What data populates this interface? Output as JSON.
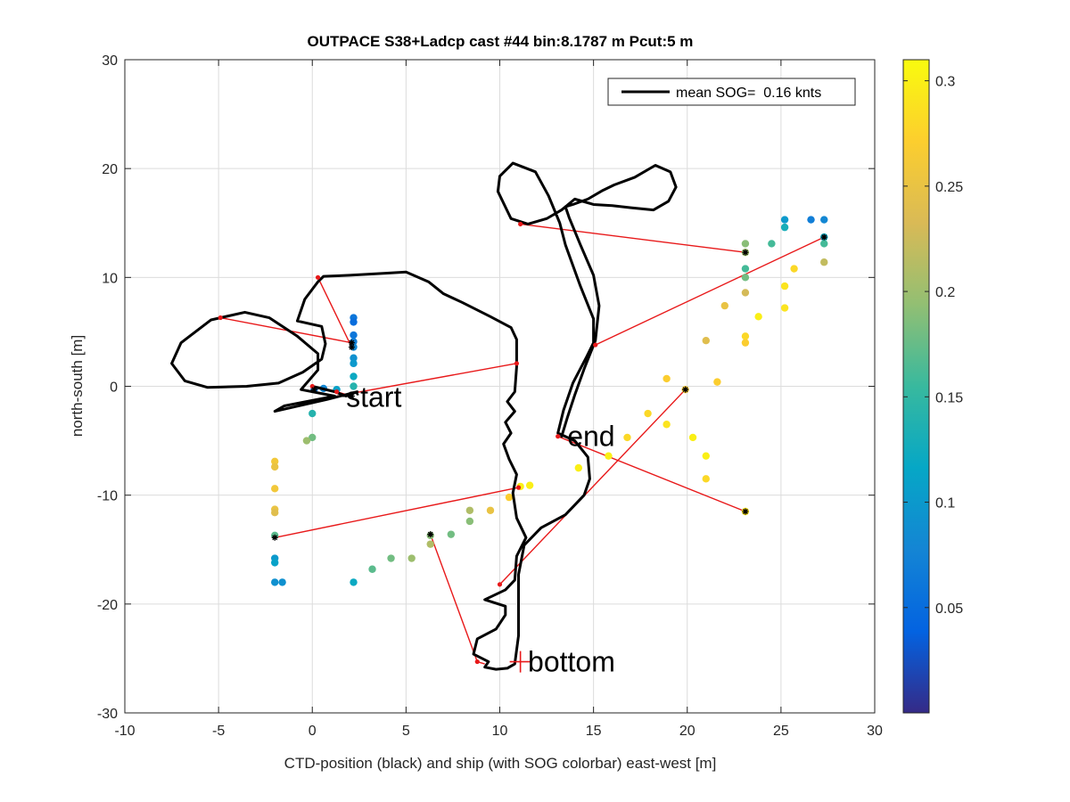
{
  "chart_data": {
    "type": "scatter",
    "title": "OUTPACE S38+Ladcp cast #44 bin:8.1787 m  Pcut:5 m",
    "xlabel": "CTD-position (black) and ship (with SOG colorbar) east-west [m]",
    "ylabel": "north-south [m]",
    "xlim": [
      -10,
      30
    ],
    "ylim": [
      -30,
      30
    ],
    "xticks": [
      -10,
      -5,
      0,
      5,
      10,
      15,
      20,
      25,
      30
    ],
    "yticks": [
      -30,
      -20,
      -10,
      0,
      10,
      20,
      30
    ],
    "grid": true,
    "legend": {
      "placement": "top-right",
      "entries": [
        "mean SOG=  0.16 knts"
      ]
    },
    "colorbar": {
      "range": [
        0,
        0.31
      ],
      "ticks": [
        0.05,
        0.1,
        0.15,
        0.2,
        0.25,
        0.3
      ],
      "tick_labels": [
        "0.05",
        "0.1",
        "0.15",
        "0.2",
        "0.25",
        "0.3"
      ],
      "colormap": [
        "#352a87",
        "#0363e1",
        "#1485d4",
        "#06a7c6",
        "#38b99e",
        "#92bf73",
        "#d9ba56",
        "#fcce2e",
        "#f9fb0e"
      ]
    },
    "annotations": [
      {
        "text": "start",
        "x": 1.8,
        "y": -1.0
      },
      {
        "text": "end",
        "x": 13.6,
        "y": -4.6
      },
      {
        "text": "bottom",
        "x": 11.5,
        "y": -25.3
      }
    ],
    "bottom_marker": {
      "x": 11.1,
      "y": -25.3
    },
    "ctd_track": [
      [
        0,
        0
      ],
      [
        1.2,
        -0.5
      ],
      [
        1.8,
        -0.9
      ],
      [
        2.4,
        -0.5
      ],
      [
        0.8,
        -1.2
      ],
      [
        -2.0,
        -2.3
      ],
      [
        -1.5,
        -1.8
      ],
      [
        1.2,
        -0.9
      ],
      [
        -0.6,
        -0.3
      ],
      [
        0.3,
        1.5
      ],
      [
        0.3,
        3.0
      ],
      [
        -0.8,
        4.6
      ],
      [
        -2.3,
        6.3
      ],
      [
        -3.6,
        6.8
      ],
      [
        -5.4,
        6.1
      ],
      [
        -7.0,
        4.0
      ],
      [
        -7.5,
        2.1
      ],
      [
        -6.8,
        0.5
      ],
      [
        -5.6,
        -0.1
      ],
      [
        -3.5,
        0
      ],
      [
        -1.8,
        0.3
      ],
      [
        -0.5,
        1.3
      ],
      [
        0.5,
        2.5
      ],
      [
        0.7,
        3.9
      ],
      [
        0.5,
        5.5
      ],
      [
        -0.8,
        6.0
      ],
      [
        -0.4,
        8.0
      ],
      [
        0.3,
        9.6
      ],
      [
        0.6,
        10.1
      ],
      [
        2.0,
        10.2
      ],
      [
        4.0,
        10.4
      ],
      [
        5.0,
        10.5
      ],
      [
        6.2,
        9.6
      ],
      [
        7.0,
        8.5
      ],
      [
        8.0,
        7.7
      ],
      [
        9.5,
        6.4
      ],
      [
        10.6,
        5.4
      ],
      [
        10.9,
        4.3
      ],
      [
        10.9,
        1.8
      ],
      [
        10.8,
        -0.5
      ],
      [
        10.4,
        -1.4
      ],
      [
        10.8,
        -2.3
      ],
      [
        10.3,
        -3.3
      ],
      [
        10.6,
        -4.3
      ],
      [
        10.2,
        -5.3
      ],
      [
        10.5,
        -6.7
      ],
      [
        10.9,
        -8.1
      ],
      [
        10.7,
        -9.8
      ],
      [
        10.9,
        -12.1
      ],
      [
        11.4,
        -13.9
      ],
      [
        10.9,
        -15.6
      ],
      [
        10.8,
        -17.8
      ],
      [
        10.3,
        -18.7
      ],
      [
        9.2,
        -19.6
      ],
      [
        10.3,
        -20.2
      ],
      [
        10.3,
        -21.0
      ],
      [
        9.8,
        -22.3
      ],
      [
        8.8,
        -23.2
      ],
      [
        8.6,
        -24.6
      ],
      [
        9.4,
        -25.3
      ],
      [
        9.2,
        -25.8
      ],
      [
        9.8,
        -26.0
      ],
      [
        10.4,
        -25.9
      ],
      [
        10.8,
        -25.5
      ],
      [
        11.0,
        -22.9
      ],
      [
        11.0,
        -17.3
      ],
      [
        11.3,
        -14.6
      ],
      [
        12.2,
        -13.0
      ],
      [
        13.5,
        -11.8
      ],
      [
        14.5,
        -10.0
      ],
      [
        14.8,
        -8.5
      ],
      [
        14.7,
        -6.5
      ],
      [
        14.0,
        -5.0
      ],
      [
        13.1,
        -4.3
      ],
      [
        13.4,
        -2.2
      ],
      [
        13.9,
        0.3
      ],
      [
        14.6,
        2.6
      ],
      [
        15.0,
        4.0
      ],
      [
        15.0,
        6.2
      ],
      [
        14.3,
        9.2
      ],
      [
        13.5,
        13.0
      ],
      [
        13.2,
        15.0
      ],
      [
        12.6,
        17.5
      ],
      [
        11.9,
        19.7
      ],
      [
        10.7,
        20.5
      ],
      [
        10.0,
        19.3
      ],
      [
        9.9,
        17.9
      ],
      [
        10.6,
        15.4
      ],
      [
        11.5,
        14.9
      ],
      [
        12.5,
        15.4
      ],
      [
        13.3,
        16.2
      ],
      [
        14.0,
        17.2
      ],
      [
        15.0,
        16.7
      ],
      [
        16.0,
        16.6
      ],
      [
        17.0,
        16.4
      ],
      [
        18.2,
        16.2
      ],
      [
        19.0,
        17.0
      ],
      [
        19.4,
        18.3
      ],
      [
        19.1,
        19.7
      ],
      [
        18.3,
        20.3
      ],
      [
        17.2,
        19.2
      ],
      [
        16.1,
        18.5
      ],
      [
        15.5,
        18.0
      ],
      [
        14.7,
        17.2
      ],
      [
        13.9,
        16.7
      ],
      [
        13.5,
        16.5
      ],
      [
        13.7,
        15.5
      ],
      [
        14.3,
        13.0
      ],
      [
        15.0,
        10.2
      ],
      [
        15.3,
        7.4
      ],
      [
        15.1,
        4.2
      ],
      [
        14.5,
        1.6
      ],
      [
        14.0,
        -0.8
      ],
      [
        13.6,
        -2.9
      ],
      [
        13.3,
        -4.6
      ]
    ],
    "ship_track": [
      {
        "x": 2.2,
        "y": 6.3,
        "sog": 0.06
      },
      {
        "x": 2.2,
        "y": 5.9,
        "sog": 0.05
      },
      {
        "x": 2.2,
        "y": 4.7,
        "sog": 0.06
      },
      {
        "x": 2.2,
        "y": 4.1,
        "sog": 0.07
      },
      {
        "x": 2.2,
        "y": 3.6,
        "sog": 0.08
      },
      {
        "x": 2.2,
        "y": 2.6,
        "sog": 0.09
      },
      {
        "x": 2.2,
        "y": 2.1,
        "sog": 0.1
      },
      {
        "x": 2.2,
        "y": 0.9,
        "sog": 0.12
      },
      {
        "x": 2.2,
        "y": 0.0,
        "sog": 0.14
      },
      {
        "x": 1.3,
        "y": -0.3,
        "sog": 0.11
      },
      {
        "x": 0.6,
        "y": -0.2,
        "sog": 0.08
      },
      {
        "x": 0.1,
        "y": -0.3,
        "sog": 0.06
      },
      {
        "x": 0.0,
        "y": -2.5,
        "sog": 0.14
      },
      {
        "x": 0.0,
        "y": -4.7,
        "sog": 0.18
      },
      {
        "x": -0.3,
        "y": -5.0,
        "sog": 0.2
      },
      {
        "x": -2.0,
        "y": -6.9,
        "sog": 0.26
      },
      {
        "x": -2.0,
        "y": -7.4,
        "sog": 0.25
      },
      {
        "x": -2.0,
        "y": -9.4,
        "sog": 0.26
      },
      {
        "x": -2.0,
        "y": -11.3,
        "sog": 0.25
      },
      {
        "x": -2.0,
        "y": -11.6,
        "sog": 0.24
      },
      {
        "x": -2.0,
        "y": -13.7,
        "sog": 0.17
      },
      {
        "x": -2.0,
        "y": -15.8,
        "sog": 0.1
      },
      {
        "x": -2.0,
        "y": -16.2,
        "sog": 0.11
      },
      {
        "x": -2.0,
        "y": -18.0,
        "sog": 0.09
      },
      {
        "x": -1.6,
        "y": -18.0,
        "sog": 0.09
      },
      {
        "x": 2.2,
        "y": -18.0,
        "sog": 0.12
      },
      {
        "x": 3.2,
        "y": -16.8,
        "sog": 0.17
      },
      {
        "x": 4.2,
        "y": -15.8,
        "sog": 0.18
      },
      {
        "x": 5.3,
        "y": -15.8,
        "sog": 0.2
      },
      {
        "x": 6.3,
        "y": -14.5,
        "sog": 0.21
      },
      {
        "x": 6.3,
        "y": -13.7,
        "sog": 0.19
      },
      {
        "x": 7.4,
        "y": -13.6,
        "sog": 0.18
      },
      {
        "x": 8.4,
        "y": -12.4,
        "sog": 0.19
      },
      {
        "x": 8.4,
        "y": -11.4,
        "sog": 0.21
      },
      {
        "x": 9.5,
        "y": -11.4,
        "sog": 0.25
      },
      {
        "x": 10.5,
        "y": -10.2,
        "sog": 0.27
      },
      {
        "x": 11.1,
        "y": -9.2,
        "sog": 0.3
      },
      {
        "x": 11.6,
        "y": -9.1,
        "sog": 0.3
      },
      {
        "x": 14.2,
        "y": -7.5,
        "sog": 0.3
      },
      {
        "x": 15.8,
        "y": -6.4,
        "sog": 0.3
      },
      {
        "x": 16.8,
        "y": -4.7,
        "sog": 0.28
      },
      {
        "x": 17.9,
        "y": -2.5,
        "sog": 0.28
      },
      {
        "x": 18.9,
        "y": -3.5,
        "sog": 0.29
      },
      {
        "x": 18.9,
        "y": 0.7,
        "sog": 0.27
      },
      {
        "x": 19.9,
        "y": -0.3,
        "sog": 0.26
      },
      {
        "x": 20.3,
        "y": -4.7,
        "sog": 0.3
      },
      {
        "x": 21.0,
        "y": -6.4,
        "sog": 0.3
      },
      {
        "x": 21.0,
        "y": -8.5,
        "sog": 0.28
      },
      {
        "x": 21.6,
        "y": 0.4,
        "sog": 0.27
      },
      {
        "x": 21.0,
        "y": 4.2,
        "sog": 0.24
      },
      {
        "x": 22.0,
        "y": 7.4,
        "sog": 0.25
      },
      {
        "x": 23.1,
        "y": 4.0,
        "sog": 0.27
      },
      {
        "x": 23.1,
        "y": 4.6,
        "sog": 0.28
      },
      {
        "x": 23.1,
        "y": 8.6,
        "sog": 0.23
      },
      {
        "x": 23.1,
        "y": 10.0,
        "sog": 0.18
      },
      {
        "x": 23.1,
        "y": 10.8,
        "sog": 0.16
      },
      {
        "x": 23.1,
        "y": 12.3,
        "sog": 0.2
      },
      {
        "x": 23.1,
        "y": 13.1,
        "sog": 0.19
      },
      {
        "x": 23.1,
        "y": -11.5,
        "sog": 0.29
      },
      {
        "x": 23.8,
        "y": 6.4,
        "sog": 0.3
      },
      {
        "x": 24.5,
        "y": 13.1,
        "sog": 0.16
      },
      {
        "x": 25.2,
        "y": 15.3,
        "sog": 0.1
      },
      {
        "x": 25.2,
        "y": 14.6,
        "sog": 0.13
      },
      {
        "x": 25.2,
        "y": 9.2,
        "sog": 0.29
      },
      {
        "x": 25.2,
        "y": 7.2,
        "sog": 0.29
      },
      {
        "x": 25.7,
        "y": 10.8,
        "sog": 0.28
      },
      {
        "x": 26.6,
        "y": 15.3,
        "sog": 0.07
      },
      {
        "x": 27.3,
        "y": 15.3,
        "sog": 0.08
      },
      {
        "x": 27.3,
        "y": 13.7,
        "sog": 0.12
      },
      {
        "x": 27.3,
        "y": 13.1,
        "sog": 0.16
      },
      {
        "x": 27.3,
        "y": 11.4,
        "sog": 0.22
      }
    ],
    "connections": [
      [
        [
          0,
          0
        ],
        [
          1.3,
          -0.5
        ],
        [
          2.1,
          -0.9
        ]
      ],
      [
        [
          2.1,
          4.0
        ],
        [
          -4.9,
          6.3
        ]
      ],
      [
        [
          2.1,
          3.6
        ],
        [
          0.3,
          10.0
        ]
      ],
      [
        [
          1.3,
          -0.9
        ],
        [
          10.9,
          2.1
        ]
      ],
      [
        [
          -2.0,
          -13.9
        ],
        [
          11.0,
          -9.3
        ]
      ],
      [
        [
          6.3,
          -13.6
        ],
        [
          8.8,
          -25.3
        ]
      ],
      [
        [
          8.8,
          -25.3
        ],
        [
          9.2,
          -25.5
        ]
      ],
      [
        [
          10.0,
          -18.2
        ],
        [
          19.9,
          -0.3
        ]
      ],
      [
        [
          13.1,
          -4.6
        ],
        [
          23.1,
          -11.5
        ]
      ],
      [
        [
          15.1,
          3.8
        ],
        [
          27.3,
          13.7
        ]
      ],
      [
        [
          11.1,
          14.9
        ],
        [
          23.1,
          12.3
        ]
      ]
    ],
    "turning_points": [
      {
        "x": 0.3,
        "y": 10.0
      },
      {
        "x": -4.9,
        "y": 6.3
      },
      {
        "x": 10.9,
        "y": 2.1
      },
      {
        "x": 11.0,
        "y": -9.3
      },
      {
        "x": 10.0,
        "y": -18.2
      },
      {
        "x": 8.8,
        "y": -25.3
      },
      {
        "x": 13.1,
        "y": -4.6
      },
      {
        "x": 15.1,
        "y": 3.8
      },
      {
        "x": 11.1,
        "y": 14.9
      },
      {
        "x": 1.3,
        "y": -0.5
      },
      {
        "x": 0,
        "y": 0
      }
    ],
    "ship_fixes": [
      {
        "x": 2.1,
        "y": 4.0
      },
      {
        "x": 2.1,
        "y": 3.6
      },
      {
        "x": 2.1,
        "y": -0.9
      },
      {
        "x": -2.0,
        "y": -13.9
      },
      {
        "x": 6.3,
        "y": -13.6
      },
      {
        "x": 19.9,
        "y": -0.3
      },
      {
        "x": 23.1,
        "y": -11.5
      },
      {
        "x": 27.3,
        "y": 13.7
      },
      {
        "x": 23.1,
        "y": 12.3
      },
      {
        "x": 0.1,
        "y": -0.3
      }
    ]
  }
}
